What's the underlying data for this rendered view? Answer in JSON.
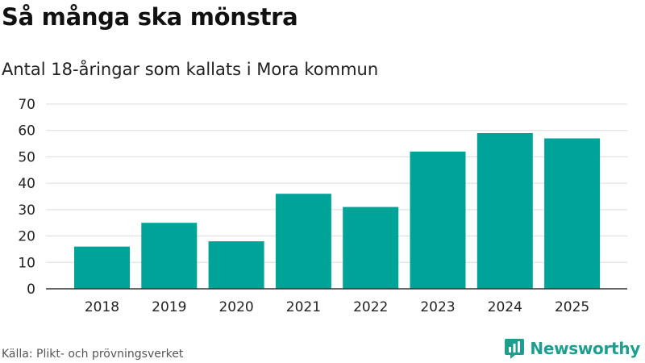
{
  "title": "Så många ska mönstra",
  "subtitle": "Antal 18-åringar som kallats i Mora kommun",
  "source": "Källa: Plikt- och prövningsverket",
  "brand": {
    "name": "Newsworthy",
    "icon": "newsworthy-logo-icon",
    "color": "#1f9e8f"
  },
  "chart_data": {
    "type": "bar",
    "title": "Så många ska mönstra",
    "subtitle": "Antal 18-åringar som kallats i Mora kommun",
    "categories": [
      "2018",
      "2019",
      "2020",
      "2021",
      "2022",
      "2023",
      "2024",
      "2025"
    ],
    "values": [
      16,
      25,
      18,
      36,
      31,
      52,
      59,
      57
    ],
    "ylim": [
      0,
      70
    ],
    "yticks": [
      0,
      10,
      20,
      30,
      40,
      50,
      60,
      70
    ],
    "grid": true,
    "bar_color": "#00a398"
  }
}
